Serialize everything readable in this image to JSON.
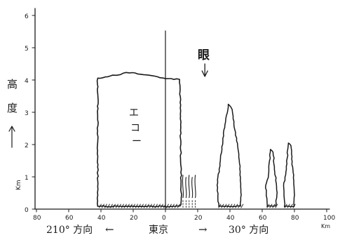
{
  "figure": {
    "y_axis_ticks": [
      "0",
      "1",
      "2",
      "3",
      "4",
      "5",
      "6"
    ],
    "y_axis_label": "高度",
    "y_axis_unit": "Km",
    "x_axis_ticks_left": [
      "80",
      "60",
      "40",
      "20",
      "0"
    ],
    "x_axis_ticks_right": [
      "20",
      "40",
      "60",
      "80",
      "100"
    ],
    "x_axis_unit": "Km",
    "eye_label": "眼",
    "echo_label": "エコー",
    "left_direction_label": "210° 方向",
    "center_label": "東京",
    "right_direction_label": "30° 方向",
    "left_arrow": "←",
    "right_arrow": "→"
  },
  "chart_data": {
    "type": "diagram",
    "x_axis": {
      "unit": "Km",
      "left_range_km": [
        0,
        80
      ],
      "right_range_km": [
        0,
        100
      ]
    },
    "y_axis": {
      "unit": "Km",
      "range": [
        0,
        6
      ]
    },
    "shapes": [
      {
        "kind": "echo-block",
        "side": "left",
        "x_from_km": 42,
        "x_to_km": 0,
        "top_km": 4.1
      },
      {
        "kind": "echo-block",
        "side": "right",
        "x_from_km": 0,
        "x_to_km": 9,
        "top_km": 4.1
      },
      {
        "kind": "shower-streaks",
        "side": "right",
        "x_from_km": 10,
        "x_to_km": 20,
        "top_km": 1.05
      },
      {
        "kind": "cloud-tower",
        "side": "right",
        "center_km": 40,
        "half_width_km": 7,
        "top_km": 3.25
      },
      {
        "kind": "cloud-tower",
        "side": "right",
        "center_km": 66,
        "half_width_km": 3,
        "top_km": 1.85
      },
      {
        "kind": "cloud-tower",
        "side": "right",
        "center_km": 77,
        "half_width_km": 3,
        "top_km": 2.05
      }
    ],
    "eye_marker_km": 24
  }
}
